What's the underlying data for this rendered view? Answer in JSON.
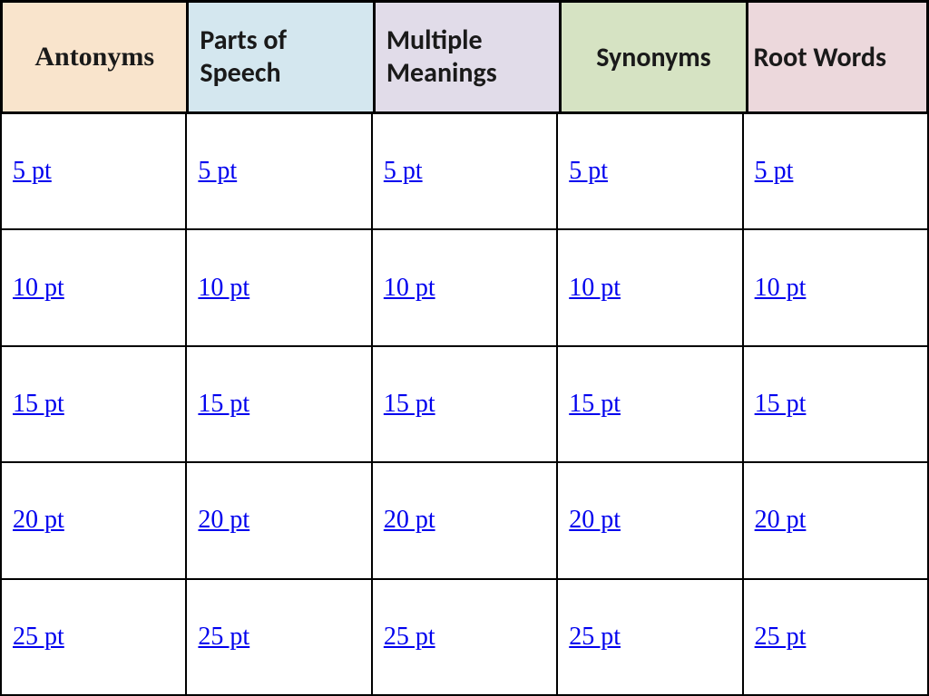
{
  "board": {
    "type": "table",
    "categories": [
      {
        "label": "Antonyms",
        "bg_color": "#f9e4cc",
        "font": "serif",
        "align": "center"
      },
      {
        "label": "Parts of Speech",
        "bg_color": "#d4e7ef",
        "font": "sans",
        "align": "left"
      },
      {
        "label": "Multiple Meanings",
        "bg_color": "#e1dce9",
        "font": "sans",
        "align": "left"
      },
      {
        "label": "Synonyms",
        "bg_color": "#d6e3c3",
        "font": "sans",
        "align": "center"
      },
      {
        "label": "Root Words",
        "bg_color": "#ecd8dc",
        "font": "sans",
        "align": "left"
      }
    ],
    "point_rows": [
      {
        "label": "5 pt"
      },
      {
        "label": "10 pt"
      },
      {
        "label": "15 pt"
      },
      {
        "label": "20 pt"
      },
      {
        "label": "25 pt"
      }
    ],
    "link_color": "#0000ee",
    "header_border_color": "#000000",
    "cell_border_color": "#000000",
    "background_color": "#ffffff",
    "header_fontsize": 30,
    "link_fontsize": 28
  }
}
